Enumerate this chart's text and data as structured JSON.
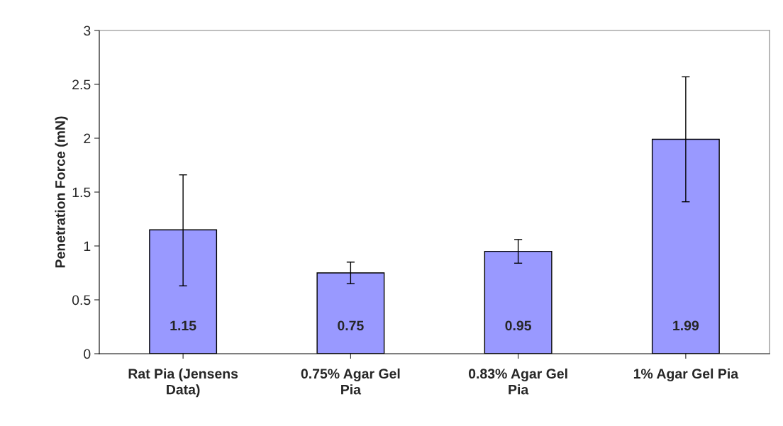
{
  "chart_data": {
    "type": "bar",
    "ylabel": "Penetration Force (mN)",
    "categories": [
      "Rat Pia (Jensens Data)",
      "0.75% Agar Gel Pia",
      "0.83% Agar Gel Pia",
      "1% Agar Gel Pia"
    ],
    "values": [
      1.15,
      0.75,
      0.95,
      1.99
    ],
    "errors": [
      [
        0.63,
        1.66
      ],
      [
        0.65,
        0.85
      ],
      [
        0.84,
        1.06
      ],
      [
        1.41,
        2.57
      ]
    ],
    "color": "#9999ff",
    "ylim": [
      0,
      3
    ],
    "yticks": [
      0,
      0.5,
      1,
      1.5,
      2,
      2.5,
      3
    ],
    "data_labels": true,
    "grid": false,
    "legend": false
  }
}
